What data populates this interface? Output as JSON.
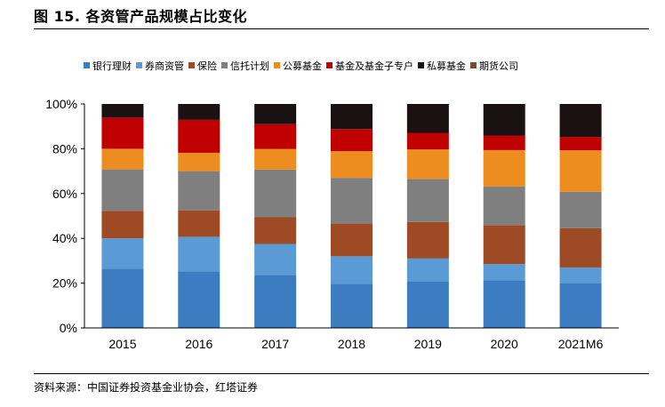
{
  "figure": {
    "title": "图 15. 各资管产品规模占比变化",
    "source": "资料来源：中国证券投资基金业协会，红塔证券"
  },
  "chart_data": {
    "type": "bar",
    "stacked": true,
    "categories": [
      "2015",
      "2016",
      "2017",
      "2018",
      "2019",
      "2020",
      "2021M6"
    ],
    "ylim": [
      0,
      100
    ],
    "yticks": [
      "0%",
      "20%",
      "40%",
      "60%",
      "80%",
      "100%"
    ],
    "legend_position": "top",
    "series": [
      {
        "name": "银行理财",
        "color": "#3C7CC0",
        "values": [
          26.5,
          25.3,
          23.7,
          19.7,
          20.8,
          21.2,
          20.0
        ]
      },
      {
        "name": "券商资管",
        "color": "#5B9BD5",
        "values": [
          13.5,
          15.4,
          13.8,
          12.3,
          10.2,
          7.3,
          7.0
        ]
      },
      {
        "name": "保险",
        "color": "#9E4A24",
        "values": [
          12.3,
          11.8,
          11.9,
          14.7,
          16.3,
          17.4,
          17.5
        ]
      },
      {
        "name": "信托计划",
        "color": "#7F7F7F",
        "values": [
          18.5,
          17.5,
          21.3,
          20.3,
          19.2,
          17.3,
          16.3
        ]
      },
      {
        "name": "公募基金",
        "color": "#ED8C1F",
        "values": [
          9.2,
          8.2,
          9.2,
          11.9,
          13.2,
          16.2,
          18.5
        ]
      },
      {
        "name": "基金及基金子专户",
        "color": "#C00000",
        "values": [
          13.9,
          14.7,
          11.1,
          9.9,
          7.4,
          6.5,
          6.0
        ]
      },
      {
        "name": "私募基金",
        "color": "#1A1212",
        "values": [
          6.1,
          7.1,
          9.0,
          11.2,
          12.9,
          14.1,
          14.7
        ]
      },
      {
        "name": "期货公司",
        "color": "#7B4A2A",
        "values": [
          0.0,
          0.0,
          0.0,
          0.0,
          0.0,
          0.0,
          0.0
        ]
      }
    ]
  }
}
